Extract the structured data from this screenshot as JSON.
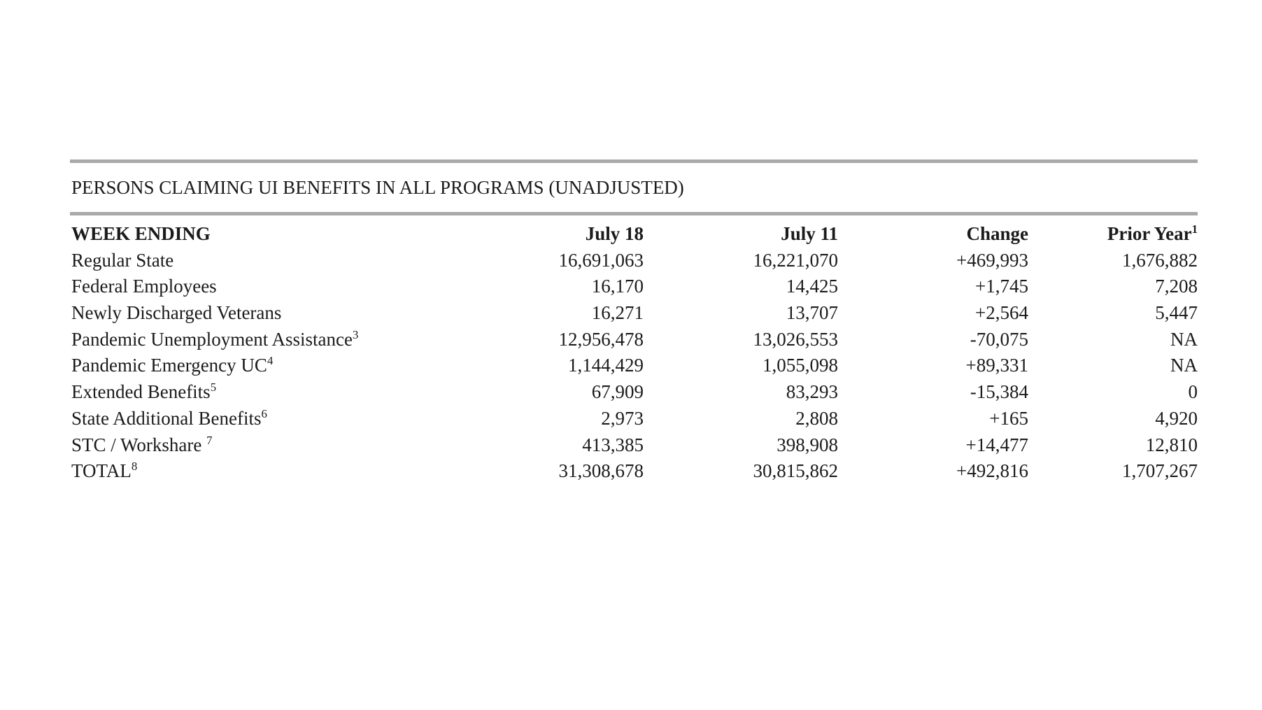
{
  "document": {
    "title": "PERSONS CLAIMING UI BENEFITS IN ALL PROGRAMS (UNADJUSTED)"
  },
  "table": {
    "columns": [
      {
        "key": "week-ending",
        "label": "WEEK ENDING",
        "sup": ""
      },
      {
        "key": "july-18",
        "label": "July 18",
        "sup": ""
      },
      {
        "key": "july-11",
        "label": "July 11",
        "sup": ""
      },
      {
        "key": "change",
        "label": "Change",
        "sup": ""
      },
      {
        "key": "prior-year",
        "label": "Prior Year",
        "sup": "1"
      }
    ],
    "rows": [
      {
        "label": "Regular State",
        "sup": "",
        "values": [
          "16,691,063",
          "16,221,070",
          "+469,993",
          "1,676,882"
        ]
      },
      {
        "label": "Federal Employees",
        "sup": "",
        "values": [
          "16,170",
          "14,425",
          "+1,745",
          "7,208"
        ]
      },
      {
        "label": "Newly Discharged Veterans",
        "sup": "",
        "values": [
          "16,271",
          "13,707",
          "+2,564",
          "5,447"
        ]
      },
      {
        "label": "Pandemic Unemployment Assistance",
        "sup": "3",
        "values": [
          "12,956,478",
          "13,026,553",
          "-70,075",
          "NA"
        ]
      },
      {
        "label": "Pandemic Emergency UC",
        "sup": "4",
        "values": [
          "1,144,429",
          "1,055,098",
          "+89,331",
          "NA"
        ]
      },
      {
        "label": "Extended Benefits",
        "sup": "5",
        "values": [
          "67,909",
          "83,293",
          "-15,384",
          "0"
        ]
      },
      {
        "label": "State Additional Benefits",
        "sup": "6",
        "values": [
          "2,973",
          "2,808",
          "+165",
          "4,920"
        ]
      },
      {
        "label": "STC / Workshare ",
        "sup": "7",
        "values": [
          "413,385",
          "398,908",
          "+14,477",
          "12,810"
        ]
      },
      {
        "label": "TOTAL",
        "sup": "8",
        "values": [
          "31,308,678",
          "30,815,862",
          "+492,816",
          "1,707,267"
        ]
      }
    ]
  },
  "colors": {
    "text": "#1b1b1b",
    "rule": "#a9a9a9",
    "background": "#ffffff"
  }
}
